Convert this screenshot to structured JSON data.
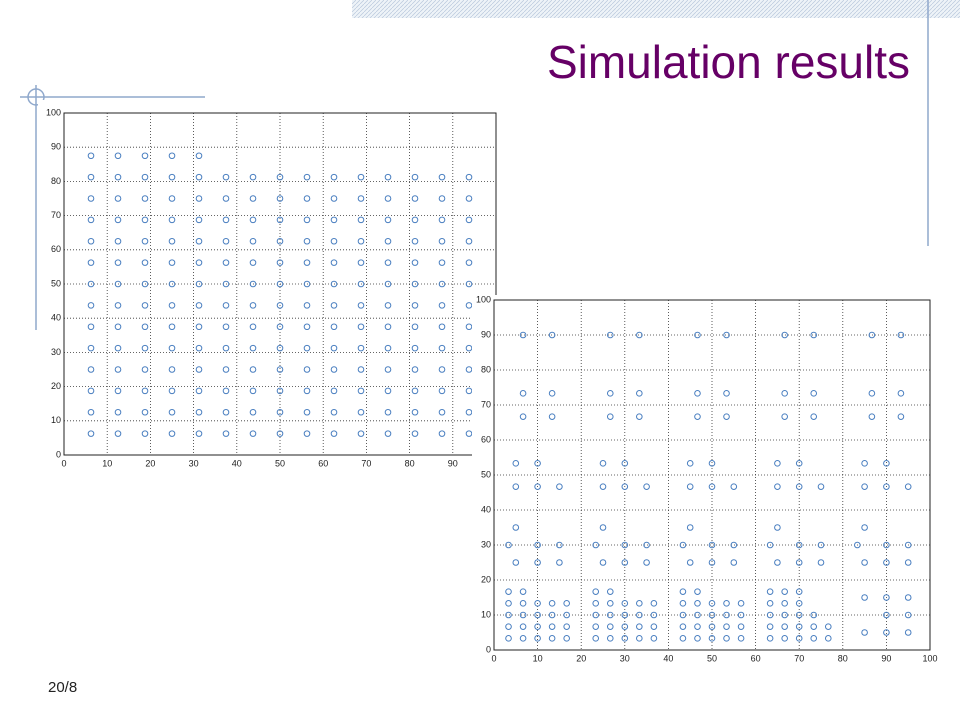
{
  "title": "Simulation results",
  "page_number": "20/8",
  "chart_data": [
    {
      "type": "scatter",
      "color": "#4a7fc0",
      "grid": true,
      "xlim": [
        0,
        100
      ],
      "ylim": [
        0,
        100
      ],
      "xticks": [
        0,
        10,
        20,
        30,
        40,
        50,
        60,
        70,
        80,
        90
      ],
      "yticks": [
        0,
        10,
        20,
        30,
        40,
        50,
        60,
        70,
        80,
        90,
        100
      ],
      "x": [
        6.25,
        12.5,
        18.75,
        25,
        31.25,
        37.5,
        43.75,
        50,
        56.25,
        62.5,
        68.75,
        75,
        81.25,
        87.5,
        93.75,
        6.25,
        12.5,
        18.75,
        25,
        31.25,
        37.5,
        43.75,
        50,
        56.25,
        62.5,
        68.75,
        75,
        81.25,
        87.5,
        93.75,
        6.25,
        12.5,
        18.75,
        25,
        31.25,
        37.5,
        43.75,
        50,
        56.25,
        62.5,
        68.75,
        75,
        81.25,
        87.5,
        93.75,
        6.25,
        12.5,
        18.75,
        25,
        31.25,
        37.5,
        43.75,
        50,
        56.25,
        62.5,
        68.75,
        75,
        81.25,
        87.5,
        93.75,
        6.25,
        12.5,
        18.75,
        25,
        31.25,
        37.5,
        43.75,
        50,
        56.25,
        62.5,
        68.75,
        75,
        81.25,
        87.5,
        93.75,
        6.25,
        12.5,
        18.75,
        25,
        31.25,
        37.5,
        43.75,
        50,
        56.25,
        62.5,
        68.75,
        75,
        81.25,
        87.5,
        93.75,
        6.25,
        12.5,
        18.75,
        25,
        31.25,
        37.5,
        43.75,
        50,
        56.25,
        62.5,
        68.75,
        75,
        81.25,
        87.5,
        93.75,
        6.25,
        12.5,
        18.75,
        25,
        31.25,
        37.5,
        43.75,
        50,
        56.25,
        62.5,
        68.75,
        75,
        81.25,
        87.5,
        93.75,
        6.25,
        12.5,
        18.75,
        25,
        31.25,
        37.5,
        43.75,
        50,
        56.25,
        62.5,
        68.75,
        75,
        81.25,
        87.5,
        93.75,
        6.25,
        12.5,
        18.75,
        25,
        31.25,
        37.5,
        43.75,
        50,
        56.25,
        62.5,
        68.75,
        75,
        81.25,
        87.5,
        93.75,
        6.25,
        12.5,
        18.75,
        25,
        31.25,
        37.5,
        43.75,
        50,
        56.25,
        62.5,
        68.75,
        75,
        81.25,
        87.5,
        93.75,
        6.25,
        12.5,
        18.75,
        25,
        31.25,
        37.5,
        43.75,
        50,
        56.25,
        62.5,
        68.75,
        75,
        81.25,
        87.5,
        93.75,
        6.25,
        12.5,
        18.75,
        25,
        31.25,
        37.5,
        43.75,
        50,
        56.25,
        62.5,
        68.75,
        75,
        81.25,
        87.5,
        93.75,
        6.25,
        12.5,
        18.75,
        25,
        31.25
      ],
      "values": [
        6.25,
        6.25,
        6.25,
        6.25,
        6.25,
        6.25,
        6.25,
        6.25,
        6.25,
        6.25,
        6.25,
        6.25,
        6.25,
        6.25,
        6.25,
        12.5,
        12.5,
        12.5,
        12.5,
        12.5,
        12.5,
        12.5,
        12.5,
        12.5,
        12.5,
        12.5,
        12.5,
        12.5,
        12.5,
        12.5,
        18.75,
        18.75,
        18.75,
        18.75,
        18.75,
        18.75,
        18.75,
        18.75,
        18.75,
        18.75,
        18.75,
        18.75,
        18.75,
        18.75,
        18.75,
        25,
        25,
        25,
        25,
        25,
        25,
        25,
        25,
        25,
        25,
        25,
        25,
        25,
        25,
        25,
        31.25,
        31.25,
        31.25,
        31.25,
        31.25,
        31.25,
        31.25,
        31.25,
        31.25,
        31.25,
        31.25,
        31.25,
        31.25,
        31.25,
        31.25,
        37.5,
        37.5,
        37.5,
        37.5,
        37.5,
        37.5,
        37.5,
        37.5,
        37.5,
        37.5,
        37.5,
        37.5,
        37.5,
        37.5,
        37.5,
        43.75,
        43.75,
        43.75,
        43.75,
        43.75,
        43.75,
        43.75,
        43.75,
        43.75,
        43.75,
        43.75,
        43.75,
        43.75,
        43.75,
        43.75,
        50,
        50,
        50,
        50,
        50,
        50,
        50,
        50,
        50,
        50,
        50,
        50,
        50,
        50,
        50,
        56.25,
        56.25,
        56.25,
        56.25,
        56.25,
        56.25,
        56.25,
        56.25,
        56.25,
        56.25,
        56.25,
        56.25,
        56.25,
        56.25,
        56.25,
        62.5,
        62.5,
        62.5,
        62.5,
        62.5,
        62.5,
        62.5,
        62.5,
        62.5,
        62.5,
        62.5,
        62.5,
        62.5,
        62.5,
        62.5,
        68.75,
        68.75,
        68.75,
        68.75,
        68.75,
        68.75,
        68.75,
        68.75,
        68.75,
        68.75,
        68.75,
        68.75,
        68.75,
        68.75,
        68.75,
        75,
        75,
        75,
        75,
        75,
        75,
        75,
        75,
        75,
        75,
        75,
        75,
        75,
        75,
        75,
        81.25,
        81.25,
        81.25,
        81.25,
        81.25,
        81.25,
        81.25,
        81.25,
        81.25,
        81.25,
        81.25,
        81.25,
        81.25,
        81.25,
        81.25,
        87.5,
        87.5,
        87.5,
        87.5,
        87.5
      ]
    },
    {
      "type": "scatter",
      "color": "#4a7fc0",
      "grid": true,
      "xlim": [
        0,
        100
      ],
      "ylim": [
        0,
        100
      ],
      "xticks": [
        0,
        10,
        20,
        30,
        40,
        50,
        60,
        70,
        80,
        90,
        100
      ],
      "yticks": [
        0,
        10,
        20,
        30,
        40,
        50,
        60,
        70,
        80,
        90,
        100
      ],
      "x": [
        6.67,
        13.33,
        6.67,
        13.33,
        6.67,
        13.33,
        5,
        10,
        5,
        10,
        15,
        5,
        3.33,
        10,
        15,
        5,
        10,
        15,
        3.33,
        6.67,
        3.33,
        6.67,
        10,
        13.33,
        16.67,
        3.33,
        6.67,
        10,
        13.33,
        16.67,
        3.33,
        6.67,
        10,
        13.33,
        16.67,
        3.33,
        6.67,
        10,
        13.33,
        16.67,
        26.67,
        33.33,
        26.67,
        33.33,
        26.67,
        33.33,
        25,
        30,
        25,
        30,
        35,
        25,
        23.33,
        30,
        35,
        25,
        30,
        35,
        23.33,
        26.67,
        23.33,
        26.67,
        30,
        33.33,
        36.67,
        23.33,
        26.67,
        30,
        33.33,
        36.67,
        23.33,
        26.67,
        30,
        33.33,
        36.67,
        23.33,
        26.67,
        30,
        33.33,
        36.67,
        46.67,
        53.33,
        46.67,
        53.33,
        46.67,
        53.33,
        45,
        50,
        45,
        50,
        55,
        45,
        43.33,
        50,
        55,
        45,
        50,
        55,
        43.33,
        46.67,
        43.33,
        46.67,
        50,
        53.33,
        56.67,
        43.33,
        46.67,
        50,
        53.33,
        56.67,
        43.33,
        46.67,
        50,
        53.33,
        56.67,
        43.33,
        46.67,
        50,
        53.33,
        56.67,
        66.67,
        73.33,
        66.67,
        73.33,
        66.67,
        73.33,
        65,
        70,
        65,
        70,
        75,
        65,
        63.33,
        70,
        75,
        65,
        70,
        75,
        63.33,
        66.67,
        70,
        63.33,
        66.67,
        70,
        63.33,
        66.67,
        70,
        73.33,
        63.33,
        66.67,
        70,
        73.33,
        76.67,
        63.33,
        66.67,
        70,
        73.33,
        76.67,
        86.67,
        93.33,
        86.67,
        93.33,
        86.67,
        93.33,
        85,
        90,
        85,
        90,
        95,
        85,
        83.33,
        90,
        95,
        85,
        90,
        95,
        85,
        90,
        95,
        90,
        95,
        85,
        90,
        95
      ],
      "values": [
        90,
        90,
        73.33,
        73.33,
        66.67,
        66.67,
        53.33,
        53.33,
        46.67,
        46.67,
        46.67,
        35,
        30,
        30,
        30,
        25,
        25,
        25,
        16.67,
        16.67,
        13.33,
        13.33,
        13.33,
        13.33,
        13.33,
        10,
        10,
        10,
        10,
        10,
        6.67,
        6.67,
        6.67,
        6.67,
        6.67,
        3.33,
        3.33,
        3.33,
        3.33,
        3.33,
        90,
        90,
        73.33,
        73.33,
        66.67,
        66.67,
        53.33,
        53.33,
        46.67,
        46.67,
        46.67,
        35,
        30,
        30,
        30,
        25,
        25,
        25,
        16.67,
        16.67,
        13.33,
        13.33,
        13.33,
        13.33,
        13.33,
        10,
        10,
        10,
        10,
        10,
        6.67,
        6.67,
        6.67,
        6.67,
        6.67,
        3.33,
        3.33,
        3.33,
        3.33,
        3.33,
        90,
        90,
        73.33,
        73.33,
        66.67,
        66.67,
        53.33,
        53.33,
        46.67,
        46.67,
        46.67,
        35,
        30,
        30,
        30,
        25,
        25,
        25,
        16.67,
        16.67,
        13.33,
        13.33,
        13.33,
        13.33,
        13.33,
        10,
        10,
        10,
        10,
        10,
        6.67,
        6.67,
        6.67,
        6.67,
        6.67,
        3.33,
        3.33,
        3.33,
        3.33,
        3.33,
        90,
        90,
        73.33,
        73.33,
        66.67,
        66.67,
        53.33,
        53.33,
        46.67,
        46.67,
        46.67,
        35,
        30,
        30,
        30,
        25,
        25,
        25,
        16.67,
        16.67,
        16.67,
        13.33,
        13.33,
        13.33,
        10,
        10,
        10,
        10,
        6.67,
        6.67,
        6.67,
        6.67,
        6.67,
        3.33,
        3.33,
        3.33,
        3.33,
        3.33,
        90,
        90,
        73.33,
        73.33,
        66.67,
        66.67,
        53.33,
        53.33,
        46.67,
        46.67,
        46.67,
        35,
        30,
        30,
        30,
        25,
        25,
        25,
        15,
        15,
        15,
        10,
        10,
        5,
        5,
        5
      ]
    }
  ]
}
